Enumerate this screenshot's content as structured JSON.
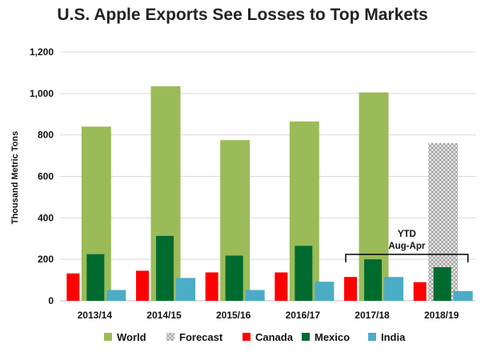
{
  "chart_data": {
    "type": "bar",
    "title": "U.S. Apple Exports See Losses to Top Markets",
    "ylabel": "Thousand Metric Tons",
    "xlabel": "",
    "ylim": [
      0,
      1200
    ],
    "yticks": [
      "0",
      "200",
      "400",
      "600",
      "800",
      "1,000",
      "1,200"
    ],
    "ytick_values": [
      0,
      200,
      400,
      600,
      800,
      1000,
      1200
    ],
    "grid": true,
    "legend_position": "bottom",
    "categories": [
      "2013/14",
      "2014/15",
      "2015/16",
      "2016/17",
      "2017/18",
      "2018/19"
    ],
    "series": [
      {
        "name": "World",
        "values": [
          840,
          1035,
          775,
          865,
          1005,
          null
        ],
        "color": "#9bbb59"
      },
      {
        "name": "Forecast",
        "values": [
          null,
          null,
          null,
          null,
          null,
          760
        ],
        "color": "#bfbfbf",
        "pattern": "crosshatch"
      },
      {
        "name": "Canada",
        "values": [
          132,
          145,
          137,
          137,
          115,
          90
        ],
        "color": "#ff0000"
      },
      {
        "name": "Mexico",
        "values": [
          225,
          313,
          218,
          265,
          200,
          162
        ],
        "color": "#006b2f"
      },
      {
        "name": "India",
        "values": [
          52,
          110,
          52,
          92,
          115,
          47
        ],
        "color": "#4bacc6"
      }
    ],
    "annotation": {
      "text_line1": "YTD",
      "text_line2": "Aug-Apr",
      "spans": [
        "2017/18",
        "2018/19"
      ]
    }
  }
}
